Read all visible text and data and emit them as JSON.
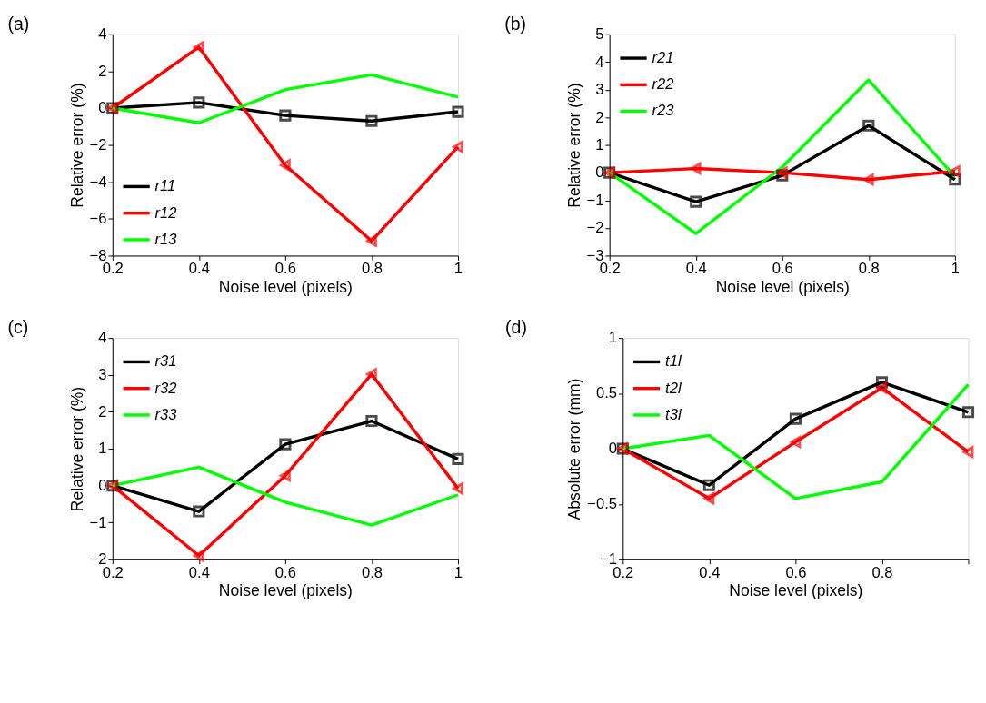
{
  "chart_data": [
    {
      "type": "line",
      "title": "(a)",
      "xlabel": "Noise level (pixels)",
      "ylabel": "Relative error (%)",
      "x": [
        0.2,
        0.4,
        0.6,
        0.8,
        1
      ],
      "xlim": [
        0.2,
        1
      ],
      "xticks": [
        0.2,
        0.4,
        0.6,
        0.8,
        1
      ],
      "ylim": [
        -8,
        4
      ],
      "yticks": [
        -8,
        -6,
        -4,
        -2,
        0,
        2,
        4
      ],
      "grid": false,
      "legend": "bottom left",
      "line_style": "solid",
      "series": [
        {
          "name": "r11",
          "color": "#000000",
          "marker": "square",
          "values": [
            0,
            0.3,
            -0.4,
            -0.7,
            -0.2
          ]
        },
        {
          "name": "r12",
          "color": "#ff0000",
          "marker": "triangle",
          "values": [
            0,
            3.3,
            -3.1,
            -7.2,
            -2.1
          ]
        },
        {
          "name": "r13",
          "color": "#00ff00",
          "marker": "none",
          "values": [
            0,
            -0.8,
            1.0,
            1.8,
            0.6
          ]
        }
      ]
    },
    {
      "type": "line",
      "title": "(b)",
      "xlabel": "Noise level (pixels)",
      "ylabel": "Relative error (%)",
      "x": [
        0.2,
        0.4,
        0.6,
        0.8,
        1
      ],
      "xlim": [
        0.2,
        1
      ],
      "xticks": [
        0.2,
        0.4,
        0.6,
        0.8,
        1
      ],
      "ylim": [
        -3,
        5
      ],
      "yticks": [
        -3,
        -2,
        -1,
        0,
        1,
        2,
        3,
        4,
        5
      ],
      "grid": false,
      "legend": "top left",
      "line_style": "solid",
      "series": [
        {
          "name": "r21",
          "color": "#000000",
          "marker": "square",
          "values": [
            0,
            -1.05,
            -0.1,
            1.7,
            -0.25
          ]
        },
        {
          "name": "r22",
          "color": "#ff0000",
          "marker": "triangle",
          "values": [
            0,
            0.15,
            0,
            -0.25,
            0.05
          ]
        },
        {
          "name": "r23",
          "color": "#00ff00",
          "marker": "none",
          "values": [
            0,
            -2.2,
            0.2,
            3.35,
            -0.15
          ]
        }
      ]
    },
    {
      "type": "line",
      "title": "(c)",
      "xlabel": "Noise level (pixels)",
      "ylabel": "Relative error (%)",
      "x": [
        0.2,
        0.4,
        0.6,
        0.8,
        1
      ],
      "xlim": [
        0.2,
        1
      ],
      "xticks": [
        0.2,
        0.4,
        0.6,
        0.8,
        1
      ],
      "ylim": [
        -2,
        4
      ],
      "yticks": [
        -2,
        -1,
        0,
        1,
        2,
        3,
        4
      ],
      "grid": false,
      "legend": "top left",
      "line_style": "solid",
      "series": [
        {
          "name": "r31",
          "color": "#000000",
          "marker": "square",
          "values": [
            0,
            -0.7,
            1.12,
            1.75,
            0.72
          ]
        },
        {
          "name": "r32",
          "color": "#ff0000",
          "marker": "triangle",
          "values": [
            0,
            -1.9,
            0.27,
            3.02,
            -0.08
          ]
        },
        {
          "name": "r33",
          "color": "#00ff00",
          "marker": "none",
          "values": [
            0,
            0.5,
            -0.45,
            -1.07,
            -0.25
          ]
        }
      ]
    },
    {
      "type": "line",
      "title": "(d)",
      "xlabel": "Noise level (pixels)",
      "ylabel": "Absolute error (mm)",
      "x": [
        0.2,
        0.4,
        0.6,
        0.8,
        1
      ],
      "xlim": [
        0.2,
        1
      ],
      "xticks": [
        0.2,
        0.4,
        0.6,
        0.8,
        {
          "value": 1,
          "label": null
        }
      ],
      "ylim": [
        -1,
        1
      ],
      "yticks": [
        -1,
        -0.5,
        0,
        0.5,
        1
      ],
      "grid": false,
      "legend": "top left",
      "line_style": "solid",
      "series": [
        {
          "name": "t1l",
          "color": "#000000",
          "marker": "square",
          "values": [
            0,
            -0.33,
            0.27,
            0.6,
            0.33
          ]
        },
        {
          "name": "t2l",
          "color": "#ff0000",
          "marker": "triangle",
          "values": [
            0,
            -0.45,
            0.06,
            0.55,
            -0.03
          ]
        },
        {
          "name": "t3l",
          "color": "#00ff00",
          "marker": "none",
          "values": [
            0,
            0.12,
            -0.45,
            -0.3,
            0.58
          ]
        }
      ]
    }
  ]
}
